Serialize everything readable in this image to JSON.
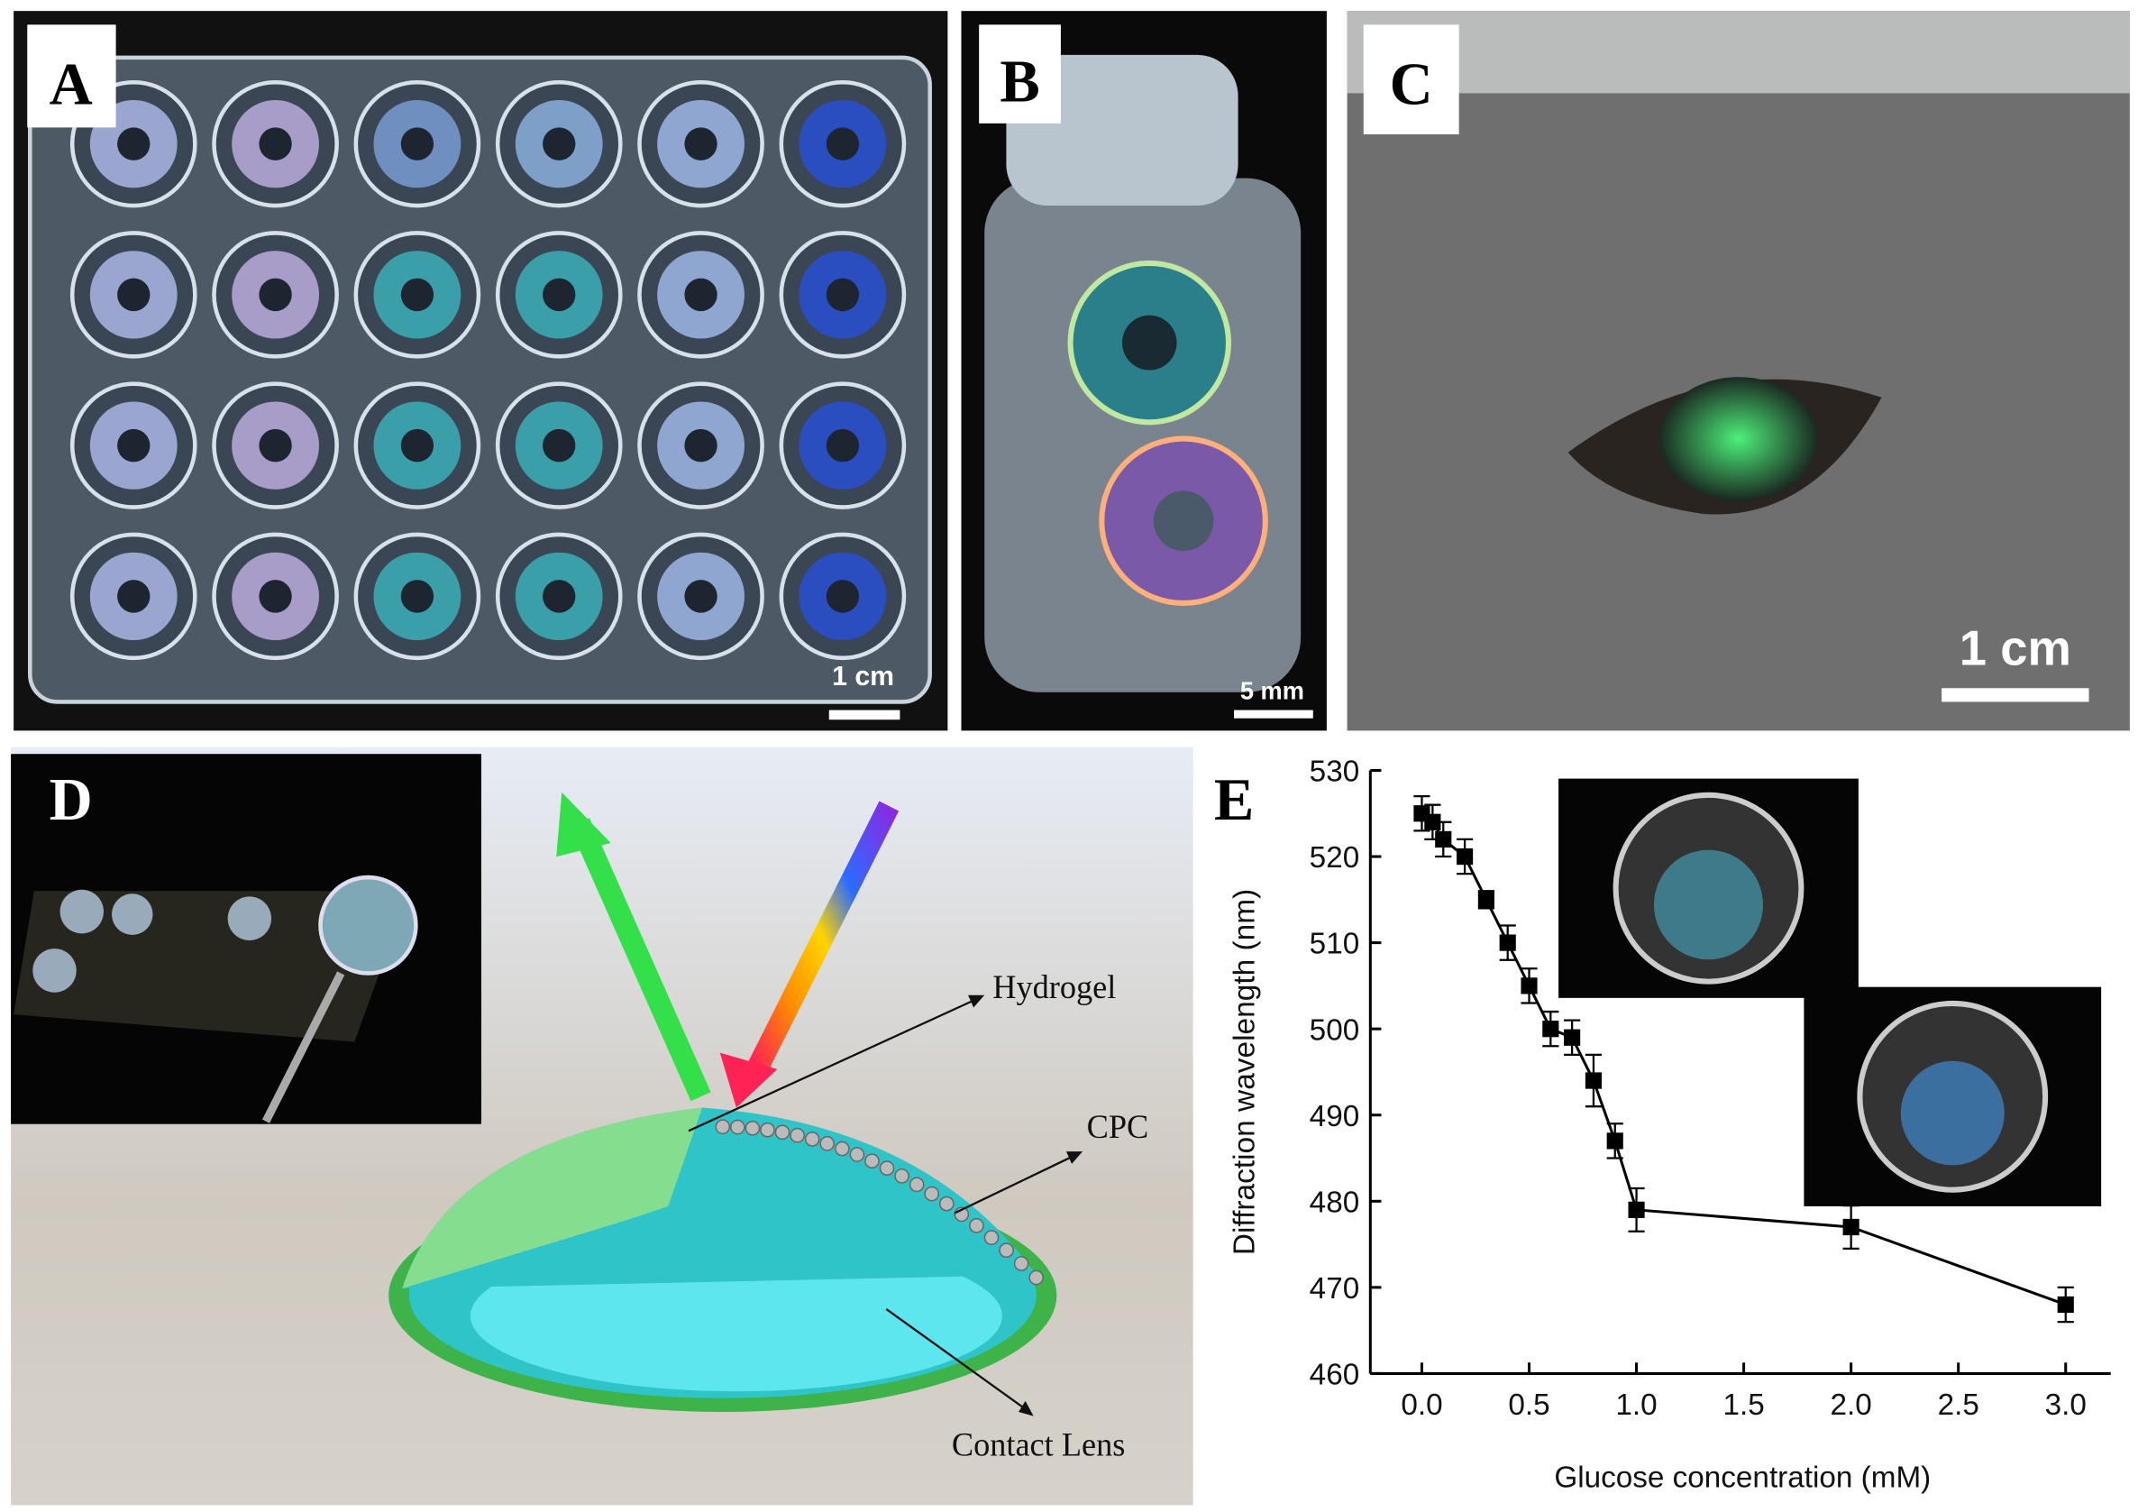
{
  "panels": {
    "labels": [
      "A",
      "B",
      "C",
      "D",
      "E"
    ],
    "scale_bars": [
      "1 cm",
      "5 mm",
      "1 cm"
    ],
    "diagram_labels": [
      "Hydrogel",
      "CPC",
      "Contact Lens"
    ]
  },
  "chart_data": {
    "type": "scatter",
    "x_label": "Glucose concentration (mM)",
    "y_label": "Diffraction wavelength (nm)",
    "x": [
      0.0,
      0.05,
      0.1,
      0.2,
      0.3,
      0.4,
      0.5,
      0.6,
      0.7,
      0.8,
      0.9,
      1.0,
      2.0,
      3.0
    ],
    "values": [
      525,
      524,
      522,
      520,
      515,
      510,
      505,
      500,
      499,
      494,
      487,
      479,
      477,
      468
    ],
    "errors": [
      2,
      2,
      2,
      2,
      1,
      2,
      2,
      2,
      2,
      3,
      2,
      2.5,
      2.5,
      2
    ],
    "color": "#000000",
    "fit_line": true,
    "xlim": [
      -0.24,
      3.21
    ],
    "ylim": [
      460,
      530
    ],
    "xticks": [
      {
        "value": 0,
        "label": "0.0"
      },
      {
        "value": 0.5,
        "label": "0.5"
      },
      {
        "value": 1,
        "label": "1.0"
      },
      {
        "value": 1.5,
        "label": "1.5"
      },
      {
        "value": 2,
        "label": "2.0"
      },
      {
        "value": 2.5,
        "label": "2.5"
      },
      {
        "value": 3,
        "label": "3.0"
      }
    ],
    "yticks": [
      460,
      470,
      480,
      490,
      500,
      510,
      520,
      530
    ]
  }
}
